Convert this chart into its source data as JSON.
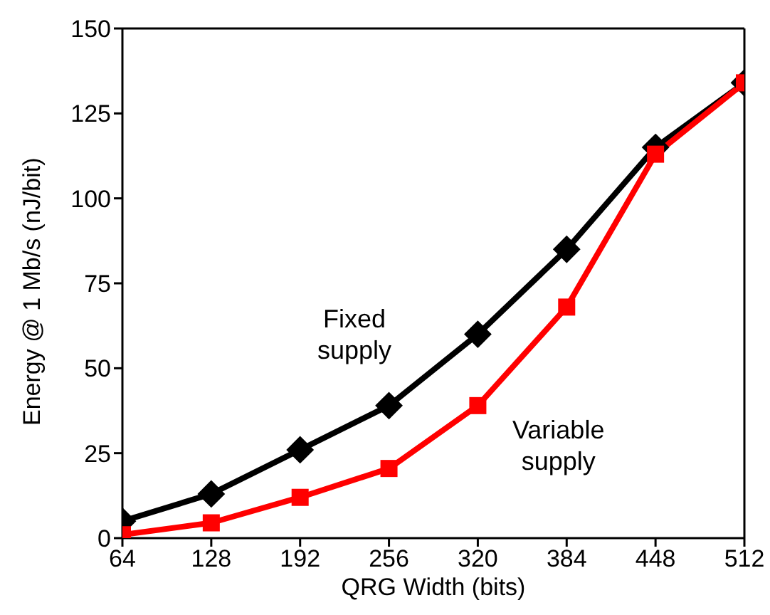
{
  "chart_data": {
    "type": "line",
    "xlabel": "QRG Width (bits)",
    "ylabel": "Energy @ 1 Mb/s (nJ/bit)",
    "x": [
      64,
      128,
      192,
      256,
      320,
      384,
      448,
      512
    ],
    "xlim": [
      64,
      512
    ],
    "xticks": [
      64,
      128,
      192,
      256,
      320,
      384,
      448,
      512
    ],
    "ylim": [
      0,
      150
    ],
    "yticks": [
      0,
      25,
      50,
      75,
      100,
      125,
      150
    ],
    "grid": false,
    "legend": false,
    "series": [
      {
        "color": "#000000",
        "marker": "diamond",
        "values": [
          5,
          13,
          26,
          39,
          60,
          85,
          115,
          134
        ]
      },
      {
        "color": "#ff0000",
        "marker": "square",
        "values": [
          1,
          4.5,
          12,
          20.5,
          39,
          68,
          113,
          134
        ]
      }
    ],
    "annotations": [
      "Fixed\nsupply",
      "Variable\nsupply"
    ]
  }
}
